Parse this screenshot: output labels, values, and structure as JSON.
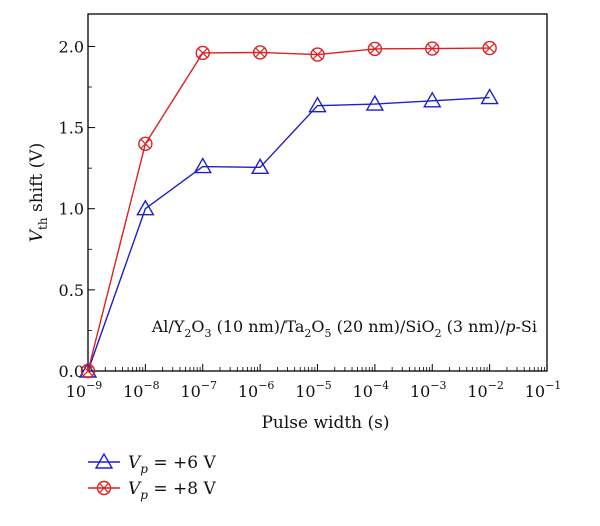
{
  "chart_data": {
    "type": "line",
    "xlabel": "Pulse width (s)",
    "ylabel_main": "V",
    "ylabel_sub": "th",
    "ylabel_rest": " shift (V)",
    "xscale": "log",
    "xlim": [
      1e-09,
      0.1
    ],
    "ylim": [
      0,
      2.2
    ],
    "x_ticks": [
      {
        "base": "10",
        "exp": "−9"
      },
      {
        "base": "10",
        "exp": "−8"
      },
      {
        "base": "10",
        "exp": "−7"
      },
      {
        "base": "10",
        "exp": "−6"
      },
      {
        "base": "10",
        "exp": "−5"
      },
      {
        "base": "10",
        "exp": "−4"
      },
      {
        "base": "10",
        "exp": "−3"
      },
      {
        "base": "10",
        "exp": "−2"
      },
      {
        "base": "10",
        "exp": "−1"
      }
    ],
    "y_ticks": [
      "0.0",
      "0.5",
      "1.0",
      "1.5",
      "2.0"
    ],
    "y_tick_values": [
      0,
      0.5,
      1.0,
      1.5,
      2.0
    ],
    "x": [
      1e-09,
      1e-08,
      1e-07,
      1e-06,
      1e-05,
      0.0001,
      0.001,
      0.01
    ],
    "series": [
      {
        "name_var": "V",
        "name_sub": "p",
        "name_val": " = +6 V",
        "color": "#1f1fcc",
        "marker": "triangle",
        "values": [
          0.0,
          1.0,
          1.26,
          1.255,
          1.635,
          1.645,
          1.665,
          1.685
        ]
      },
      {
        "name_var": "V",
        "name_sub": "p",
        "name_val": " = +8 V",
        "color": "#e02020",
        "marker": "circle-x",
        "values": [
          0.0,
          1.4,
          1.96,
          1.963,
          1.95,
          1.985,
          1.987,
          1.99
        ]
      }
    ],
    "annotation": [
      {
        "t": "Al/Y",
        "s": false
      },
      {
        "t": "2",
        "s": true
      },
      {
        "t": "O",
        "s": false
      },
      {
        "t": "3",
        "s": true
      },
      {
        "t": " (10 nm)/Ta",
        "s": false
      },
      {
        "t": "2",
        "s": true
      },
      {
        "t": "O",
        "s": false
      },
      {
        "t": "5",
        "s": true
      },
      {
        "t": " (20 nm)/SiO",
        "s": false
      },
      {
        "t": "2",
        "s": true
      },
      {
        "t": " (3 nm)/",
        "s": false
      },
      {
        "t": "p",
        "s": false,
        "i": true
      },
      {
        "t": "-Si",
        "s": false
      }
    ],
    "grid": false,
    "legend_position": "below-left"
  }
}
